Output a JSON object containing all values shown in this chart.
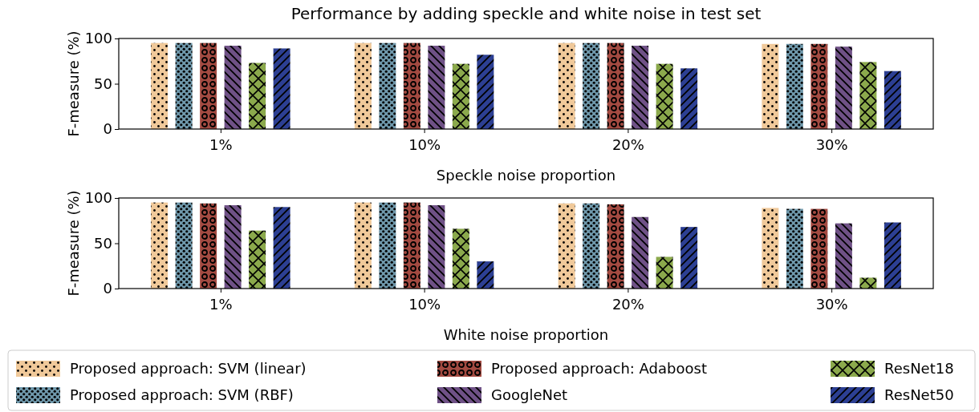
{
  "chart_data": [
    {
      "type": "bar",
      "title": "Performance by adding speckle and white noise in test set",
      "xlabel": "Speckle noise proportion",
      "ylabel": "F-measure (%)",
      "categories": [
        "1%",
        "10%",
        "20%",
        "30%"
      ],
      "ylim": [
        0,
        100
      ],
      "yticks": [
        0,
        50,
        100
      ],
      "legend": false,
      "series": [
        {
          "color": "#f0c99a",
          "values": [
            95,
            95,
            95,
            94
          ]
        },
        {
          "color": "#6f98ab",
          "values": [
            95,
            95,
            95,
            94
          ]
        },
        {
          "color": "#a34a41",
          "values": [
            95,
            95,
            95,
            94
          ]
        },
        {
          "color": "#6f5186",
          "values": [
            92,
            92,
            92,
            91
          ]
        },
        {
          "color": "#8ba94c",
          "values": [
            73,
            72,
            72,
            74
          ]
        },
        {
          "color": "#2c3f93",
          "values": [
            89,
            82,
            67,
            64
          ]
        }
      ]
    },
    {
      "type": "bar",
      "xlabel": "White noise proportion",
      "ylabel": "F-measure (%)",
      "categories": [
        "1%",
        "10%",
        "20%",
        "30%"
      ],
      "ylim": [
        0,
        100
      ],
      "yticks": [
        0,
        50,
        100
      ],
      "legend": "bottom",
      "series": [
        {
          "name": "Proposed approach: SVM (linear)",
          "color": "#f0c99a",
          "values": [
            95,
            95,
            94,
            89
          ]
        },
        {
          "name": "Proposed approach: SVM (RBF)",
          "color": "#6f98ab",
          "values": [
            95,
            95,
            94,
            88
          ]
        },
        {
          "name": "Proposed approach: Adaboost",
          "color": "#a34a41",
          "values": [
            94,
            95,
            93,
            88
          ]
        },
        {
          "name": "GoogleNet",
          "color": "#6f5186",
          "values": [
            92,
            92,
            79,
            72
          ]
        },
        {
          "name": "ResNet18",
          "color": "#8ba94c",
          "values": [
            64,
            66,
            35,
            12
          ]
        },
        {
          "name": "ResNet50",
          "color": "#2c3f93",
          "values": [
            90,
            30,
            68,
            73
          ]
        }
      ]
    }
  ]
}
